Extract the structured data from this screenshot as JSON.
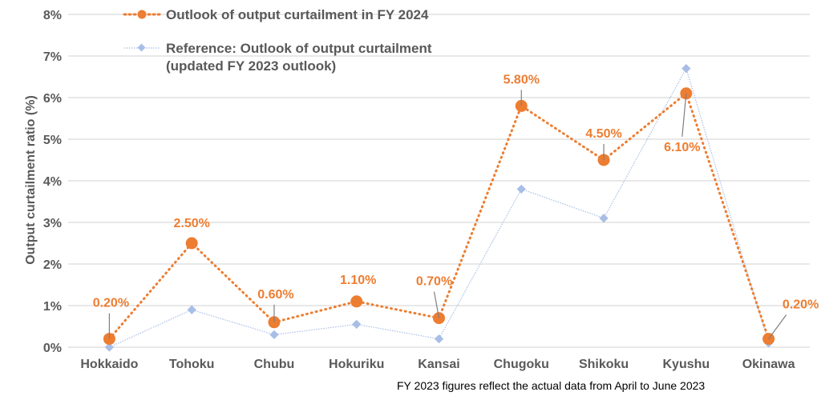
{
  "chart_data": {
    "type": "line",
    "ylabel": "Output curtailment ratio (%)",
    "ylim": [
      0,
      8
    ],
    "yticks": [
      "0%",
      "1%",
      "2%",
      "3%",
      "4%",
      "5%",
      "6%",
      "7%",
      "8%"
    ],
    "grid": true,
    "legend_placement": "top",
    "categories": [
      "Hokkaido",
      "Tohoku",
      "Chubu",
      "Hokuriku",
      "Kansai",
      "Chugoku",
      "Shikoku",
      "Kyushu",
      "Okinawa"
    ],
    "series": [
      {
        "name": "Outlook of output curtailment in FY 2024",
        "color": "#ED7D31",
        "style": "dotted, circle markers",
        "values": [
          0.2,
          2.5,
          0.6,
          1.1,
          0.7,
          5.8,
          4.5,
          6.1,
          0.2
        ],
        "labels": [
          "0.20%",
          "2.50%",
          "0.60%",
          "1.10%",
          "0.70%",
          "5.80%",
          "4.50%",
          "6.10%",
          "0.20%"
        ]
      },
      {
        "name": "Reference: Outlook of output curtailment (updated FY 2023 outlook)",
        "name_lines": [
          "Reference: Outlook of output curtailment",
          "(updated FY 2023 outlook)"
        ],
        "color": "#A9BEE6",
        "style": "thin dotted, diamond markers",
        "values": [
          0.0,
          0.9,
          0.3,
          0.55,
          0.2,
          3.8,
          3.1,
          6.7,
          0.1
        ]
      }
    ],
    "annotation": "FY 2023 figures reflect the actual data from April to June 2023"
  }
}
